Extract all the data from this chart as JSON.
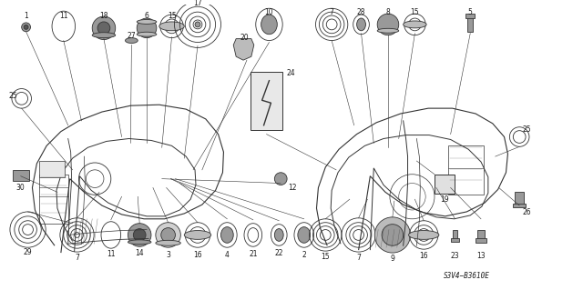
{
  "title": "",
  "bg_color": "#ffffff",
  "diagram_code": "S3V4−B3610E",
  "fig_width": 6.4,
  "fig_height": 3.19,
  "dpi": 100,
  "text_color": "#1a1a1a",
  "line_color": "#333333",
  "gray_fill": "#888888",
  "light_gray": "#bbbbbb",
  "mid_gray": "#999999"
}
